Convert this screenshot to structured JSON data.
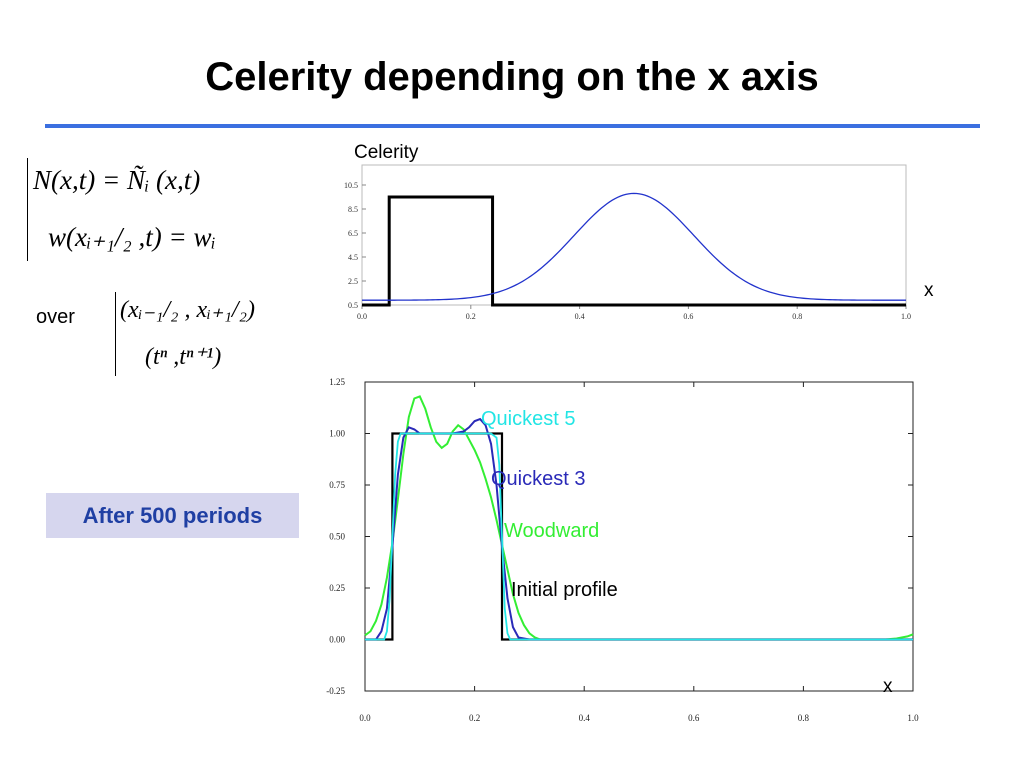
{
  "title": "Celerity depending on the x axis",
  "equations": {
    "line1": "N(x,t) = Ñᵢ (x,t)",
    "line2": "w(xᵢ₊₁/₂ ,t) = wᵢ",
    "over_label": "over",
    "over_line1": "(xᵢ₋₁/₂ , xᵢ₊₁/₂)",
    "over_line2": "(tⁿ ,tⁿ⁺¹)"
  },
  "annotation_box": {
    "text": "After 500 periods",
    "bg_color": "#d6d6ee",
    "text_color": "#1f3fa3"
  },
  "chart_data": [
    {
      "type": "line",
      "ylabel": "Celerity",
      "xlabel": "x",
      "xlim": [
        0.0,
        1.0
      ],
      "ylim": [
        0.5,
        10.5
      ],
      "xticks": [
        "0.0",
        "0.2",
        "0.4",
        "0.6",
        "0.8",
        "1.0"
      ],
      "yticks": [
        "0.5",
        "2.5",
        "4.5",
        "6.5",
        "8.5",
        "10.5"
      ],
      "series": [
        {
          "color": "#000000",
          "style": "step",
          "x": [
            0.0,
            0.05,
            0.05,
            0.24,
            0.24,
            1.0
          ],
          "y": [
            0.5,
            0.5,
            9.5,
            9.5,
            0.5,
            0.5
          ]
        },
        {
          "color": "#2233cc",
          "style": "gaussian",
          "baseline": 0.9,
          "peak": 9.8,
          "center": 0.5,
          "width": 0.11
        }
      ]
    },
    {
      "type": "line",
      "xlabel": "x",
      "xlim": [
        0.0,
        1.0
      ],
      "ylim": [
        -0.25,
        1.25
      ],
      "xticks": [
        "0.0",
        "0.2",
        "0.4",
        "0.6",
        "0.8",
        "1.0"
      ],
      "yticks": [
        "1.25",
        "1.00",
        "0.75",
        "0.50",
        "0.25",
        "0.00",
        "-0.25"
      ],
      "series": [
        {
          "name": "Initial profile",
          "color": "#000000",
          "x": [
            0.0,
            0.05,
            0.05,
            0.25,
            0.25,
            1.0
          ],
          "y": [
            0.0,
            0.0,
            1.0,
            1.0,
            0.0,
            0.0
          ]
        },
        {
          "name": "Woodward",
          "color": "#33ee33",
          "x": [
            0.0,
            0.01,
            0.02,
            0.03,
            0.04,
            0.05,
            0.06,
            0.07,
            0.08,
            0.09,
            0.1,
            0.11,
            0.12,
            0.13,
            0.14,
            0.15,
            0.16,
            0.17,
            0.18,
            0.19,
            0.2,
            0.21,
            0.22,
            0.23,
            0.24,
            0.25,
            0.26,
            0.27,
            0.28,
            0.29,
            0.3,
            0.31,
            0.32,
            0.33,
            0.4,
            0.6,
            0.8,
            0.95,
            0.97,
            0.99,
            1.0
          ],
          "y": [
            0.02,
            0.04,
            0.09,
            0.17,
            0.3,
            0.47,
            0.68,
            0.9,
            1.08,
            1.17,
            1.18,
            1.12,
            1.03,
            0.96,
            0.93,
            0.95,
            1.01,
            1.04,
            1.02,
            0.97,
            0.92,
            0.86,
            0.78,
            0.69,
            0.58,
            0.46,
            0.34,
            0.22,
            0.13,
            0.07,
            0.03,
            0.01,
            0.0,
            0.0,
            0.0,
            0.0,
            0.0,
            0.0,
            0.005,
            0.015,
            0.025
          ]
        },
        {
          "name": "Quickest 3",
          "color": "#2a2ab8",
          "x": [
            0.0,
            0.02,
            0.03,
            0.04,
            0.05,
            0.06,
            0.07,
            0.08,
            0.09,
            0.1,
            0.12,
            0.14,
            0.16,
            0.18,
            0.19,
            0.2,
            0.21,
            0.22,
            0.23,
            0.24,
            0.25,
            0.26,
            0.27,
            0.28,
            0.3,
            1.0
          ],
          "y": [
            0.0,
            0.0,
            0.04,
            0.15,
            0.45,
            0.8,
            0.98,
            1.03,
            1.02,
            1.0,
            1.0,
            1.0,
            1.0,
            1.01,
            1.03,
            1.06,
            1.07,
            1.04,
            0.95,
            0.75,
            0.45,
            0.2,
            0.06,
            0.01,
            0.0,
            0.0
          ]
        },
        {
          "name": "Quickest 5",
          "color": "#22e5e5",
          "x": [
            0.0,
            0.035,
            0.04,
            0.045,
            0.05,
            0.055,
            0.06,
            0.065,
            0.07,
            0.2,
            0.23,
            0.24,
            0.245,
            0.25,
            0.255,
            0.26,
            0.265,
            0.27,
            1.0
          ],
          "y": [
            0.0,
            0.0,
            0.04,
            0.2,
            0.5,
            0.8,
            0.96,
            1.0,
            1.0,
            1.0,
            1.0,
            0.98,
            0.85,
            0.5,
            0.15,
            0.03,
            0.0,
            0.0,
            0.0
          ]
        }
      ]
    }
  ]
}
